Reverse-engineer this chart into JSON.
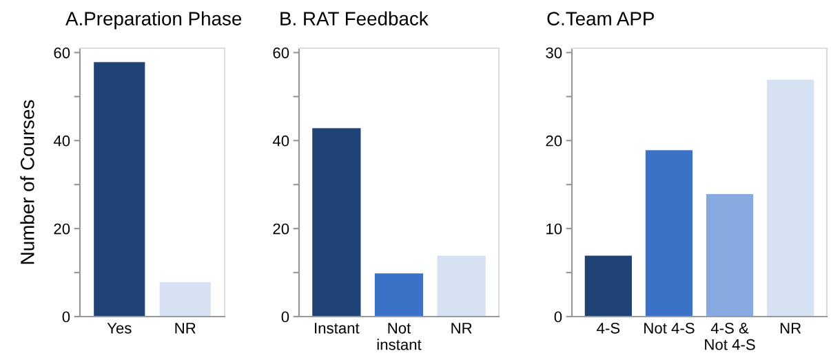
{
  "chart_data": [
    {
      "type": "bar",
      "title": "A.Preparation Phase",
      "ylabel": "Number of Courses",
      "categories": [
        "Yes",
        "NR"
      ],
      "values": [
        58,
        8
      ],
      "colors": [
        "#1f4375",
        "#d6e2f4"
      ],
      "ylim": [
        0,
        61
      ],
      "yticks": [
        0,
        {
          "value": 10,
          "label": null
        },
        20,
        {
          "value": 30,
          "label": null
        },
        40,
        {
          "value": 50,
          "label": null
        },
        60
      ],
      "grid": false,
      "legend": false
    },
    {
      "type": "bar",
      "title": "B. RAT Feedback",
      "categories": [
        "Instant",
        "Not\ninstant",
        "NR"
      ],
      "values": [
        43,
        10,
        14
      ],
      "colors": [
        "#1f4375",
        "#3a72c8",
        "#d6e2f4"
      ],
      "ylim": [
        0,
        61
      ],
      "yticks": [
        0,
        {
          "value": 10,
          "label": null
        },
        20,
        {
          "value": 30,
          "label": null
        },
        40,
        {
          "value": 50,
          "label": null
        },
        60
      ],
      "grid": false,
      "legend": false
    },
    {
      "type": "bar",
      "title": "C.Team APP",
      "categories": [
        "4-S",
        "Not 4-S",
        "4-S &\nNot 4-S",
        "NR"
      ],
      "values": [
        7,
        19,
        14,
        27
      ],
      "colors": [
        "#1f4375",
        "#3a72c8",
        "#86a9df",
        "#d6e2f4"
      ],
      "ylim": [
        0,
        30.5
      ],
      "yticks": [
        0,
        {
          "value": 5,
          "label": null
        },
        10,
        {
          "value": 15,
          "label": null
        },
        20,
        {
          "value": 25,
          "label": null
        },
        30
      ],
      "grid": false,
      "legend": false
    }
  ]
}
